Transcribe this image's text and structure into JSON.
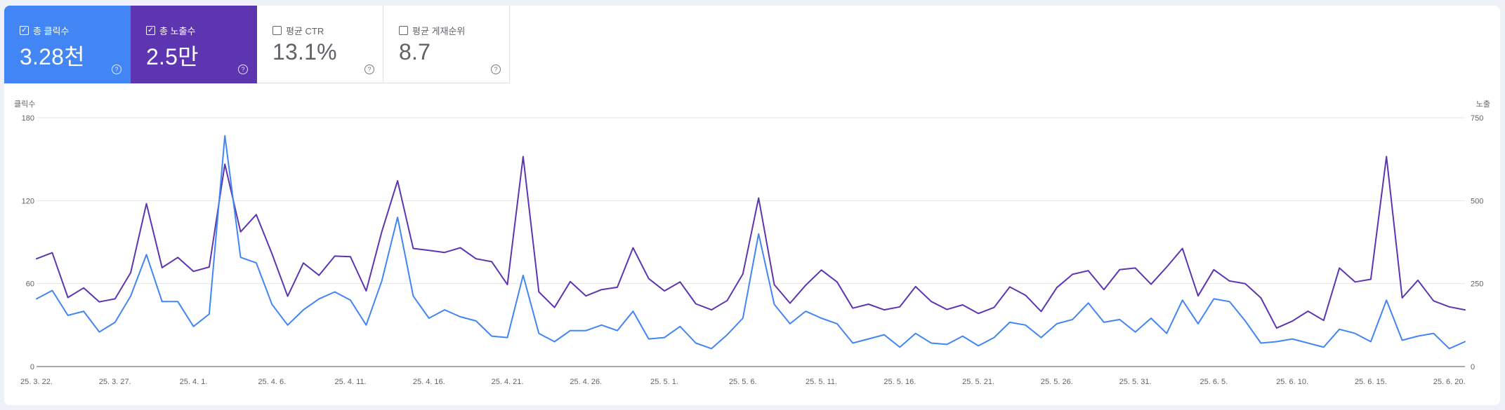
{
  "metrics": {
    "clicks": {
      "label": "총 클릭수",
      "value": "3.28천",
      "checked": true
    },
    "impressions": {
      "label": "총 노출수",
      "value": "2.5만",
      "checked": true
    },
    "ctr": {
      "label": "평균 CTR",
      "value": "13.1%",
      "checked": false
    },
    "position": {
      "label": "평균 게재순위",
      "value": "8.7",
      "checked": false
    }
  },
  "colors": {
    "clicks": "#4285f4",
    "impressions": "#5e35b1",
    "grid": "#e6e6e6",
    "axis": "#777777"
  },
  "icons": {
    "checkbox_checked": "checkbox-checked-icon",
    "checkbox_empty": "checkbox-icon",
    "help": "help-circle-icon"
  },
  "chart_data": {
    "type": "line",
    "y_left_label": "클릭수",
    "y_right_label": "노출",
    "y_left_ticks": [
      "180",
      "120",
      "60",
      "0"
    ],
    "y_right_ticks": [
      "750",
      "500",
      "250",
      "0"
    ],
    "ylim_left": [
      0,
      180
    ],
    "ylim_right": [
      0,
      750
    ],
    "x_tick_labels": [
      "25. 3. 22.",
      "25. 3. 27.",
      "25. 4. 1.",
      "25. 4. 6.",
      "25. 4. 11.",
      "25. 4. 16.",
      "25. 4. 21.",
      "25. 4. 26.",
      "25. 5. 1.",
      "25. 5. 6.",
      "25. 5. 11.",
      "25. 5. 16.",
      "25. 5. 21.",
      "25. 5. 26.",
      "25. 5. 31.",
      "25. 6. 5.",
      "25. 6. 10.",
      "25. 6. 15.",
      "25. 6. 20."
    ],
    "x_tick_every": 5,
    "grid": true,
    "series": [
      {
        "axis": "left",
        "color": "#4285f4",
        "values": [
          49,
          55,
          37,
          40,
          25,
          32,
          51,
          81,
          47,
          47,
          29,
          38,
          167,
          79,
          75,
          45,
          30,
          41,
          49,
          54,
          48,
          30,
          62,
          108,
          51,
          35,
          41,
          36,
          33,
          22,
          21,
          66,
          24,
          18,
          26,
          26,
          30,
          26,
          40,
          20,
          21,
          29,
          17,
          13,
          23,
          35,
          96,
          45,
          31,
          40,
          35,
          31,
          17,
          20,
          23,
          14,
          24,
          17,
          16,
          22,
          15,
          21,
          32,
          30,
          21,
          31,
          34,
          46,
          32,
          34,
          25,
          35,
          24,
          48,
          31,
          49,
          47,
          33,
          17,
          18,
          20,
          17,
          14,
          27,
          24,
          18,
          48,
          19,
          22,
          24,
          13,
          18
        ]
      },
      {
        "axis": "right",
        "color": "#5e35b1",
        "values": [
          325,
          343,
          208,
          237,
          195,
          204,
          283,
          491,
          298,
          329,
          287,
          300,
          610,
          406,
          458,
          340,
          212,
          312,
          275,
          333,
          331,
          228,
          407,
          560,
          356,
          350,
          344,
          358,
          325,
          316,
          247,
          633,
          225,
          178,
          256,
          213,
          232,
          239,
          358,
          265,
          228,
          255,
          189,
          171,
          199,
          279,
          508,
          247,
          191,
          245,
          291,
          255,
          176,
          188,
          171,
          180,
          241,
          196,
          172,
          186,
          160,
          178,
          240,
          215,
          166,
          238,
          278,
          289,
          232,
          292,
          297,
          248,
          300,
          356,
          213,
          292,
          258,
          250,
          207,
          116,
          137,
          167,
          139,
          297,
          255,
          263,
          633,
          207,
          260,
          198,
          180,
          171
        ]
      }
    ]
  }
}
